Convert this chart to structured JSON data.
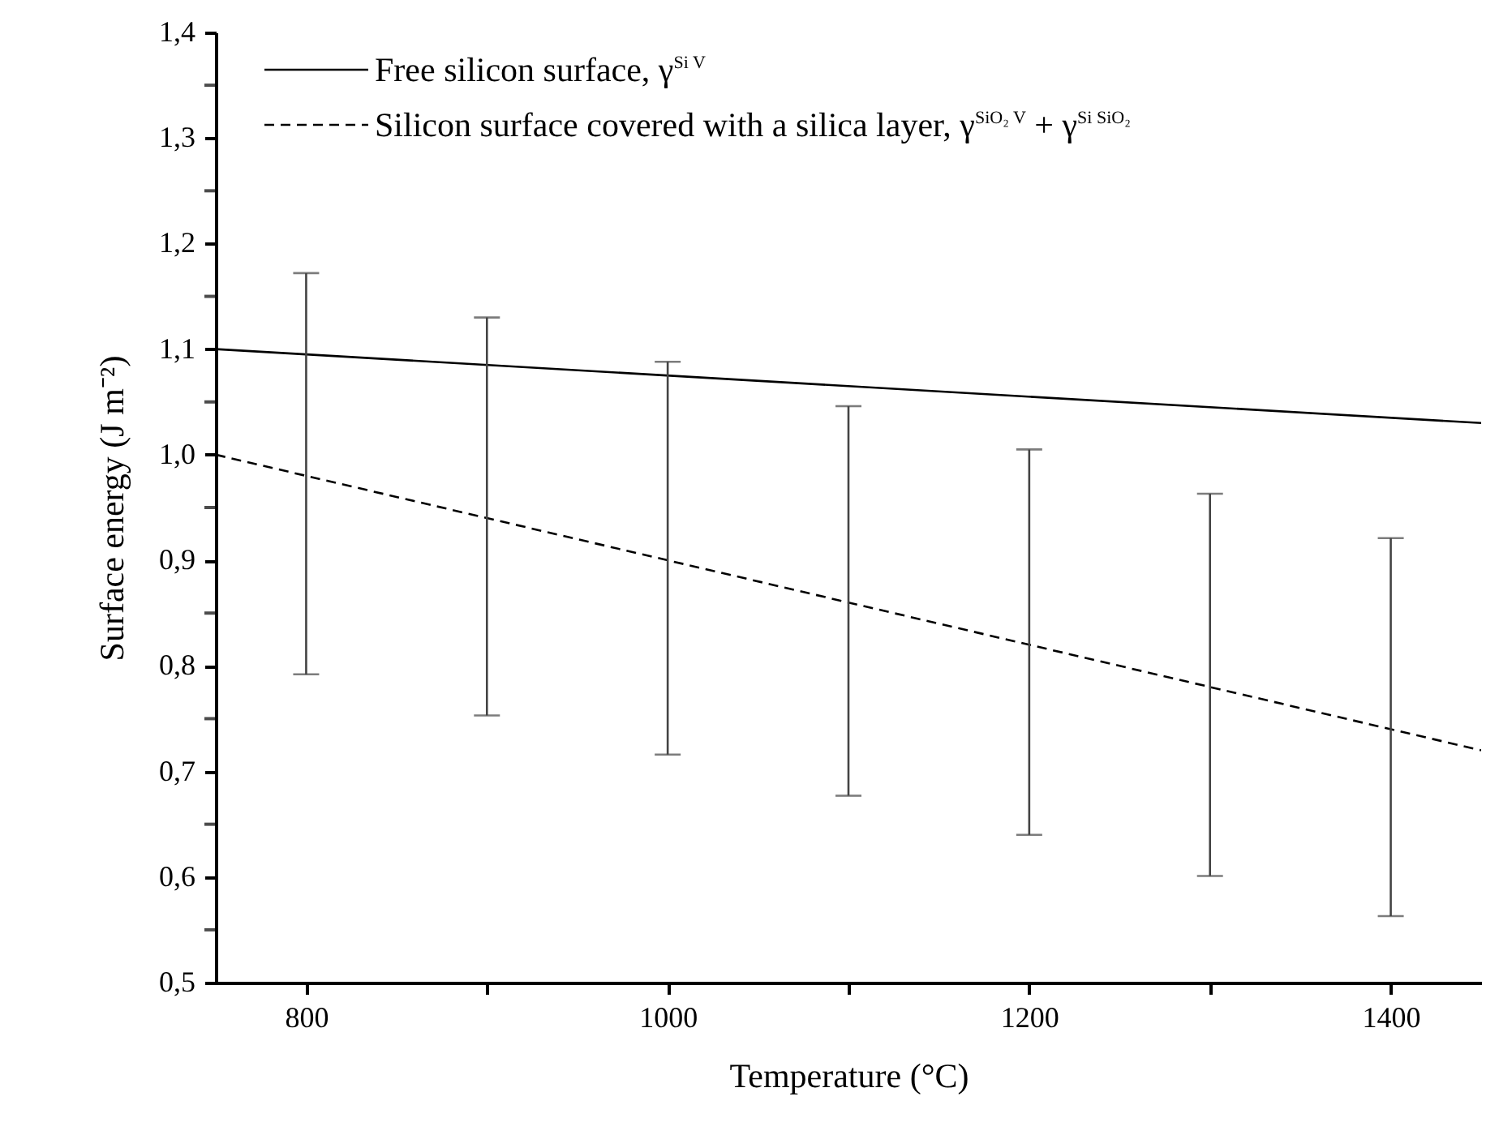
{
  "chart_data": {
    "type": "line",
    "xlabel": "Temperature (°C)",
    "ylabel": "Surface energy (J m⁻²)",
    "xlim": [
      750,
      1450
    ],
    "ylim": [
      0.5,
      1.4
    ],
    "xticks": [
      800,
      {
        "value": 900,
        "label": null
      },
      1000,
      {
        "value": 1100,
        "label": null
      },
      1200,
      {
        "value": 1300,
        "label": null
      },
      1400
    ],
    "yticks": [
      {
        "value": 0.5,
        "label": "0,5"
      },
      {
        "value": 0.55,
        "label": null
      },
      {
        "value": 0.6,
        "label": "0,6"
      },
      {
        "value": 0.65,
        "label": null
      },
      {
        "value": 0.7,
        "label": "0,7"
      },
      {
        "value": 0.75,
        "label": null
      },
      {
        "value": 0.8,
        "label": "0,8"
      },
      {
        "value": 0.85,
        "label": null
      },
      {
        "value": 0.9,
        "label": "0,9"
      },
      {
        "value": 0.95,
        "label": null
      },
      {
        "value": 1.0,
        "label": "1,0"
      },
      {
        "value": 1.05,
        "label": null
      },
      {
        "value": 1.1,
        "label": "1,1"
      },
      {
        "value": 1.15,
        "label": null
      },
      {
        "value": 1.2,
        "label": "1,2"
      },
      {
        "value": 1.25,
        "label": null
      },
      {
        "value": 1.3,
        "label": "1,3"
      },
      {
        "value": 1.35,
        "label": null
      },
      {
        "value": 1.4,
        "label": "1,4"
      }
    ],
    "grid": false,
    "legend": "top left",
    "marker": "none",
    "series": [
      {
        "name": "Free silicon surface, γ$^{Si V}$",
        "color": "#000000",
        "line_style": "solid",
        "x": [
          750,
          1450
        ],
        "values": [
          1.1,
          1.03
        ]
      },
      {
        "name": "Silicon surface covered with a silica layer, γ$^{SiO₂ V}$ + γ$^{Si SiO₂}$",
        "color": "#000000",
        "line_style": "dashed",
        "x": [
          750,
          800,
          900,
          1000,
          1100,
          1200,
          1300,
          1400,
          1450
        ],
        "values": [
          1.0,
          0.98,
          0.94,
          0.9,
          0.86,
          0.82,
          0.78,
          0.74,
          0.72
        ],
        "errors": [
          null,
          [
            0.792,
            1.172
          ],
          [
            0.753,
            1.13
          ],
          [
            0.716,
            1.088
          ],
          [
            0.677,
            1.046
          ],
          [
            0.64,
            1.005
          ],
          [
            0.601,
            0.963
          ],
          [
            0.563,
            0.921
          ],
          null
        ]
      }
    ]
  }
}
